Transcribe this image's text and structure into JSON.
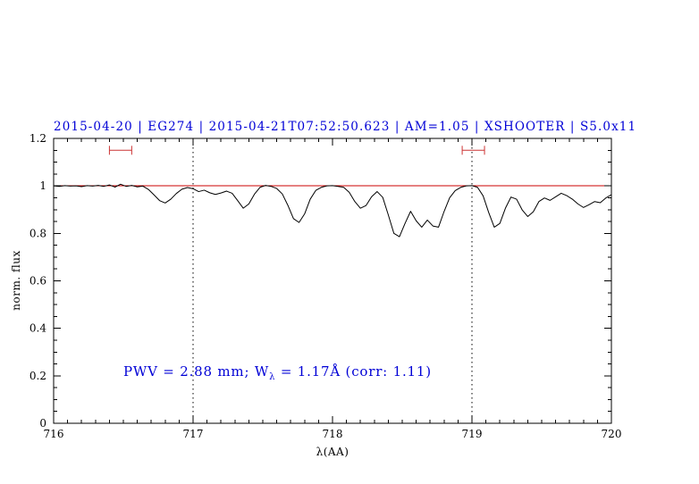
{
  "title": "2015-04-20 | EG274 | 2015-04-21T07:52:50.623 | AM=1.05 | XSHOOTER | S5.0x11",
  "annotation": {
    "prefix": "PWV = 2.88 mm; W",
    "sub": "λ",
    "suffix": " = 1.17Å (corr: 1.11)"
  },
  "colors": {
    "title": "#0000d6",
    "annotation": "#0000d6",
    "spectrum": "#000000",
    "continuum": "#cc0000",
    "marker": "#cc3333",
    "frame": "#000000",
    "dotted": "#000000"
  },
  "chart_data": {
    "type": "line",
    "title": "2015-04-20 | EG274 | 2015-04-21T07:52:50.623 | AM=1.05 | XSHOOTER | S5.0x11",
    "xlabel": "λ(AA)",
    "ylabel": "norm. flux",
    "xlim": [
      716,
      720
    ],
    "ylim": [
      0,
      1.2
    ],
    "x_ticks": [
      716,
      717,
      718,
      719,
      720
    ],
    "x_tick_labels": [
      "716",
      "717",
      "718",
      "719",
      "720"
    ],
    "y_ticks": [
      0,
      0.2,
      0.4,
      0.6,
      0.8,
      1,
      1.2
    ],
    "y_tick_labels": [
      "0",
      "0.2",
      "0.4",
      "0.6",
      "0.8",
      "1",
      "1.2"
    ],
    "x_minor_step": 0.1,
    "y_minor_step": 0.05,
    "grid": false,
    "legend": "none",
    "dotted_vlines": [
      717,
      719
    ],
    "continuum_line_y": 1.0,
    "range_markers": [
      {
        "x1": 716.4,
        "x2": 716.56,
        "y": 1.15
      },
      {
        "x1": 718.93,
        "x2": 719.09,
        "y": 1.15
      }
    ],
    "series": [
      {
        "name": "spectrum",
        "points": [
          [
            716.0,
            1.0
          ],
          [
            716.04,
            0.998
          ],
          [
            716.08,
            1.001
          ],
          [
            716.12,
            0.999
          ],
          [
            716.16,
            1.0
          ],
          [
            716.2,
            0.997
          ],
          [
            716.24,
            1.001
          ],
          [
            716.28,
            0.999
          ],
          [
            716.32,
            1.002
          ],
          [
            716.36,
            0.998
          ],
          [
            716.4,
            1.004
          ],
          [
            716.44,
            0.995
          ],
          [
            716.48,
            1.007
          ],
          [
            716.52,
            0.998
          ],
          [
            716.56,
            1.002
          ],
          [
            716.6,
            0.996
          ],
          [
            716.64,
            0.999
          ],
          [
            716.68,
            0.985
          ],
          [
            716.72,
            0.962
          ],
          [
            716.76,
            0.938
          ],
          [
            716.8,
            0.928
          ],
          [
            716.84,
            0.944
          ],
          [
            716.88,
            0.968
          ],
          [
            716.92,
            0.986
          ],
          [
            716.96,
            0.993
          ],
          [
            717.0,
            0.988
          ],
          [
            717.04,
            0.976
          ],
          [
            717.08,
            0.982
          ],
          [
            717.12,
            0.971
          ],
          [
            717.16,
            0.964
          ],
          [
            717.2,
            0.97
          ],
          [
            717.24,
            0.978
          ],
          [
            717.28,
            0.969
          ],
          [
            717.32,
            0.938
          ],
          [
            717.36,
            0.906
          ],
          [
            717.4,
            0.924
          ],
          [
            717.44,
            0.965
          ],
          [
            717.48,
            0.994
          ],
          [
            717.52,
            1.002
          ],
          [
            717.56,
            0.998
          ],
          [
            717.6,
            0.989
          ],
          [
            717.64,
            0.966
          ],
          [
            717.68,
            0.918
          ],
          [
            717.72,
            0.862
          ],
          [
            717.76,
            0.846
          ],
          [
            717.8,
            0.882
          ],
          [
            717.84,
            0.944
          ],
          [
            717.88,
            0.981
          ],
          [
            717.92,
            0.994
          ],
          [
            717.96,
            1.0
          ],
          [
            718.0,
            1.001
          ],
          [
            718.04,
            0.998
          ],
          [
            718.08,
            0.994
          ],
          [
            718.12,
            0.973
          ],
          [
            718.16,
            0.934
          ],
          [
            718.2,
            0.906
          ],
          [
            718.24,
            0.917
          ],
          [
            718.28,
            0.954
          ],
          [
            718.32,
            0.976
          ],
          [
            718.36,
            0.952
          ],
          [
            718.4,
            0.878
          ],
          [
            718.44,
            0.8
          ],
          [
            718.48,
            0.786
          ],
          [
            718.52,
            0.842
          ],
          [
            718.56,
            0.893
          ],
          [
            718.6,
            0.853
          ],
          [
            718.64,
            0.826
          ],
          [
            718.68,
            0.856
          ],
          [
            718.72,
            0.831
          ],
          [
            718.76,
            0.826
          ],
          [
            718.8,
            0.892
          ],
          [
            718.84,
            0.95
          ],
          [
            718.88,
            0.98
          ],
          [
            718.92,
            0.994
          ],
          [
            718.96,
            1.0
          ],
          [
            719.0,
            1.001
          ],
          [
            719.04,
            0.994
          ],
          [
            719.08,
            0.958
          ],
          [
            719.12,
            0.888
          ],
          [
            719.16,
            0.826
          ],
          [
            719.2,
            0.842
          ],
          [
            719.24,
            0.906
          ],
          [
            719.28,
            0.953
          ],
          [
            719.32,
            0.944
          ],
          [
            719.36,
            0.899
          ],
          [
            719.4,
            0.871
          ],
          [
            719.44,
            0.891
          ],
          [
            719.48,
            0.934
          ],
          [
            719.52,
            0.949
          ],
          [
            719.56,
            0.939
          ],
          [
            719.6,
            0.954
          ],
          [
            719.64,
            0.969
          ],
          [
            719.68,
            0.959
          ],
          [
            719.72,
            0.944
          ],
          [
            719.76,
            0.924
          ],
          [
            719.8,
            0.909
          ],
          [
            719.84,
            0.921
          ],
          [
            719.88,
            0.934
          ],
          [
            719.92,
            0.929
          ],
          [
            719.96,
            0.949
          ],
          [
            720.0,
            0.963
          ]
        ]
      }
    ]
  }
}
